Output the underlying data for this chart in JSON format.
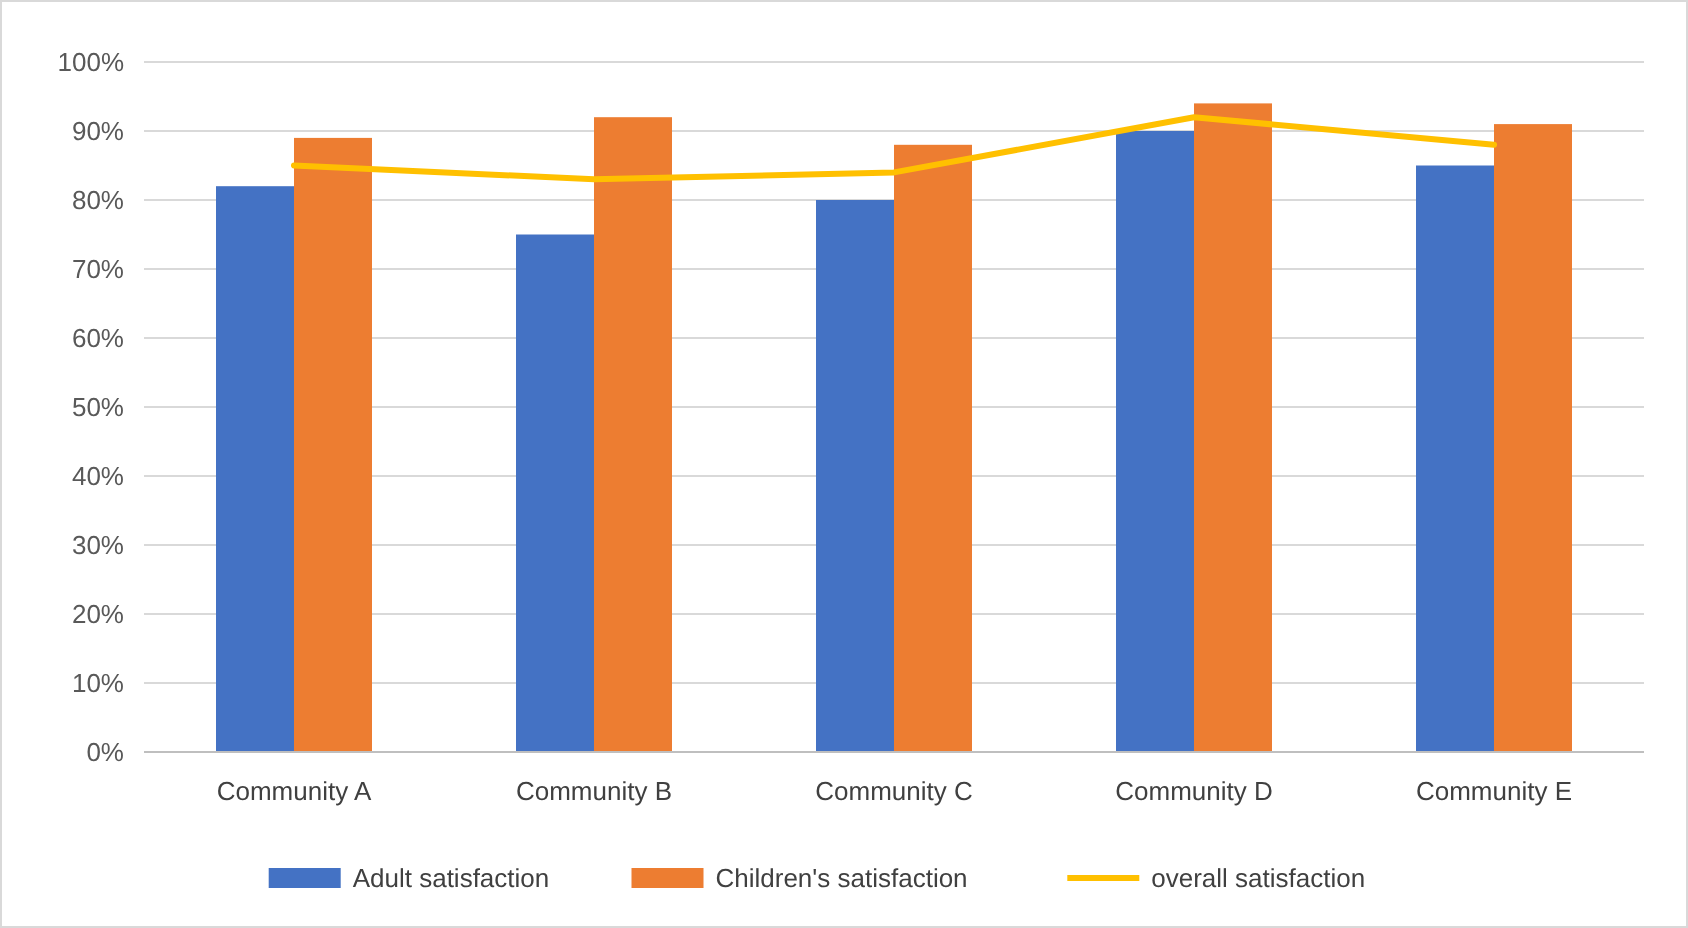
{
  "chart_data": {
    "type": "bar",
    "categories": [
      "Community A",
      "Community B",
      "Community C",
      "Community D",
      "Community E"
    ],
    "series": [
      {
        "name": "Adult satisfaction",
        "color": "#4472c4",
        "values": [
          82,
          75,
          80,
          90,
          85
        ]
      },
      {
        "name": "Children's satisfaction",
        "color": "#ed7d31",
        "values": [
          89,
          92,
          88,
          94,
          91
        ]
      },
      {
        "name": "overall satisfaction",
        "type": "line",
        "color": "#ffc000",
        "values": [
          85,
          83,
          84,
          92,
          88
        ]
      }
    ],
    "ylim": [
      0,
      100
    ],
    "yticks": [
      {
        "value": 0,
        "label": "0%"
      },
      {
        "value": 10,
        "label": "10%"
      },
      {
        "value": 20,
        "label": "20%"
      },
      {
        "value": 30,
        "label": "30%"
      },
      {
        "value": 40,
        "label": "40%"
      },
      {
        "value": 50,
        "label": "50%"
      },
      {
        "value": 60,
        "label": "60%"
      },
      {
        "value": 70,
        "label": "70%"
      },
      {
        "value": 80,
        "label": "80%"
      },
      {
        "value": 90,
        "label": "90%"
      },
      {
        "value": 100,
        "label": "100%"
      }
    ],
    "grid": "y",
    "legend": "bottom"
  }
}
